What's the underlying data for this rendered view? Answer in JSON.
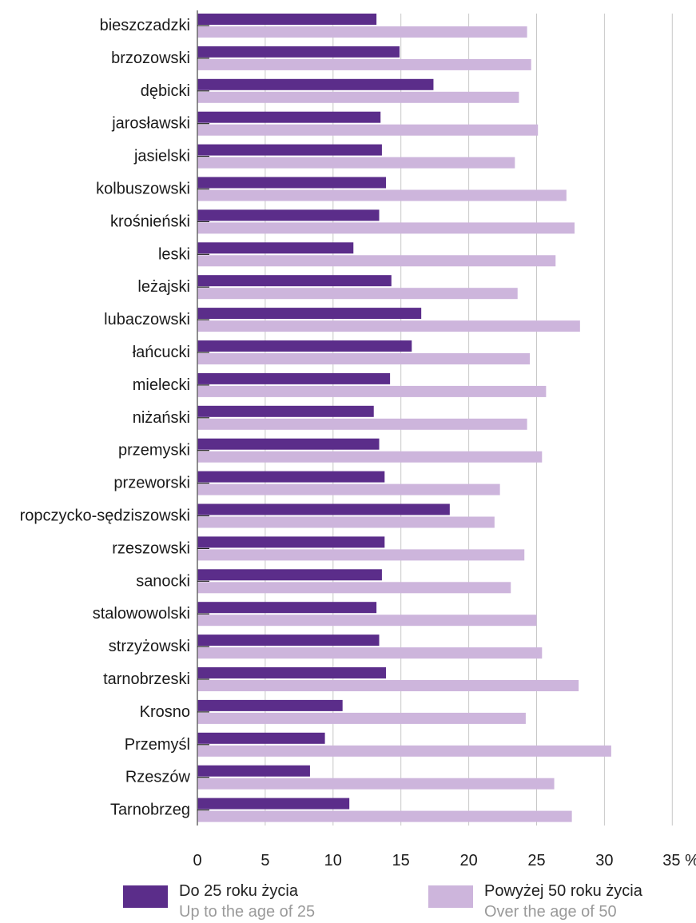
{
  "chart_data": {
    "type": "bar",
    "orientation": "horizontal",
    "categories": [
      "bieszczadzki",
      "brzozowski",
      "dębicki",
      "jarosławski",
      "jasielski",
      "kolbuszowski",
      "krośnieński",
      "leski",
      "leżajski",
      "lubaczowski",
      "łańcucki",
      "mielecki",
      "niżański",
      "przemyski",
      "przeworski",
      "ropczycko-sędziszowski",
      "rzeszowski",
      "sanocki",
      "stalowowolski",
      "strzyżowski",
      "tarnobrzeski",
      "Krosno",
      "Przemyśl",
      "Rzeszów",
      "Tarnobrzeg"
    ],
    "series": [
      {
        "name": "Do 25 roku życia",
        "subtitle": "Up to the age of 25",
        "color": "#5b2d8a",
        "values": [
          13.2,
          14.9,
          17.4,
          13.5,
          13.6,
          13.9,
          13.4,
          11.5,
          14.3,
          16.5,
          15.8,
          14.2,
          13.0,
          13.4,
          13.8,
          18.6,
          13.8,
          13.6,
          13.2,
          13.4,
          13.9,
          10.7,
          9.4,
          8.3,
          11.2
        ]
      },
      {
        "name": "Powyżej 50 roku życia",
        "subtitle": "Over the age of 50",
        "color": "#cdb5dc",
        "values": [
          24.3,
          24.6,
          23.7,
          25.1,
          23.4,
          27.2,
          27.8,
          26.4,
          23.6,
          28.2,
          24.5,
          25.7,
          24.3,
          25.4,
          22.3,
          21.9,
          24.1,
          23.1,
          25.0,
          25.4,
          28.1,
          24.2,
          30.5,
          26.3,
          27.6
        ]
      }
    ],
    "xticks": [
      "0",
      "5",
      "10",
      "15",
      "20",
      "25",
      "30",
      "35 %"
    ],
    "xlim": [
      0,
      35
    ],
    "grid": true,
    "legend_position": "bottom"
  }
}
